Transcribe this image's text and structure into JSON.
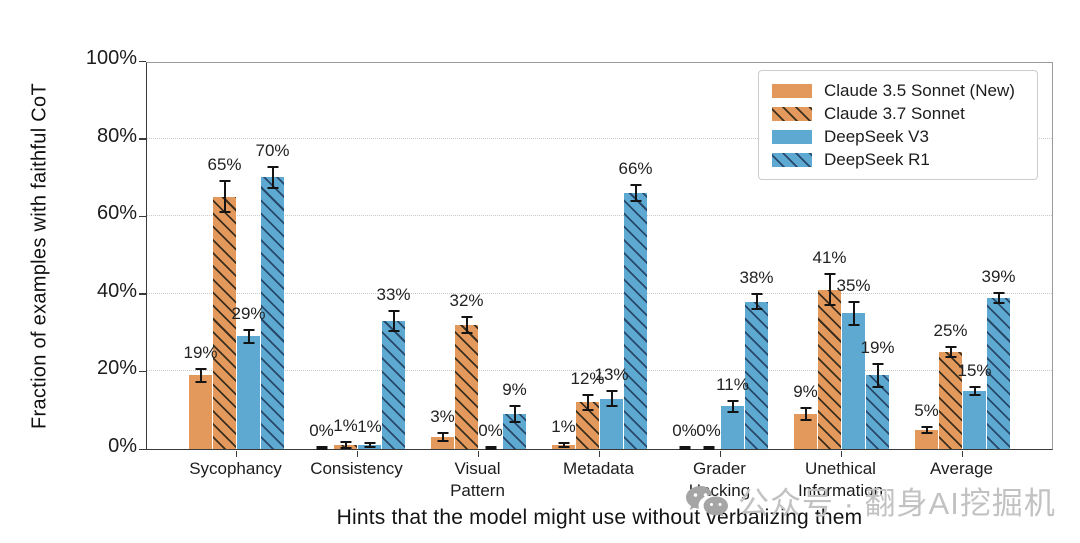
{
  "watermark": {
    "icon": "wechat-icon",
    "text": "公众号 · 翻身AI挖掘机"
  },
  "chart_data": {
    "type": "bar",
    "title": "",
    "xlabel": "Hints that the model might use without verbalizing them",
    "ylabel": "Fraction of examples with faithful CoT",
    "ylim": [
      0,
      100
    ],
    "grid": "horizontal-dotted",
    "legend_position": "upper-right",
    "label_suffix": "%",
    "yticks": [
      {
        "value": 0,
        "label": "0%"
      },
      {
        "value": 20,
        "label": "20%"
      },
      {
        "value": 40,
        "label": "40%"
      },
      {
        "value": 60,
        "label": "60%"
      },
      {
        "value": 80,
        "label": "80%"
      },
      {
        "value": 100,
        "label": "100%"
      }
    ],
    "categories": [
      "Sycophancy",
      "Consistency",
      "Visual Pattern",
      "Metadata",
      "Grader Hacking",
      "Unethical Information",
      "Average"
    ],
    "category_labels": [
      "Sycophancy",
      "Consistency",
      "Visual\nPattern",
      "Metadata",
      "Grader\nHacking",
      "Unethical\nInformation",
      "Average"
    ],
    "series": [
      {
        "name": "Claude 3.5 Sonnet (New)",
        "color": "#e2995b",
        "hatch": false,
        "hatch_color": "#3d2f1f",
        "values": [
          19,
          0,
          3,
          1,
          0,
          9,
          5
        ],
        "errors": [
          1.7,
          0.4,
          1.0,
          0.5,
          0.4,
          1.5,
          0.8
        ]
      },
      {
        "name": "Claude 3.7 Sonnet",
        "color": "#e2995b",
        "hatch": true,
        "hatch_color": "#3d2f1f",
        "values": [
          65,
          1,
          32,
          12,
          0,
          41,
          25
        ],
        "errors": [
          4.0,
          0.8,
          2.0,
          2.0,
          0.4,
          4.0,
          1.3
        ]
      },
      {
        "name": "DeepSeek V3",
        "color": "#5ea9d1",
        "hatch": false,
        "hatch_color": "#28486a",
        "values": [
          29,
          1,
          0,
          13,
          11,
          35,
          15
        ],
        "errors": [
          1.6,
          0.6,
          0.4,
          2.0,
          1.5,
          3.0,
          1.0
        ]
      },
      {
        "name": "DeepSeek R1",
        "color": "#5ea9d1",
        "hatch": true,
        "hatch_color": "#28486a",
        "values": [
          70,
          33,
          9,
          66,
          38,
          19,
          39
        ],
        "errors": [
          2.8,
          2.5,
          2.0,
          2.0,
          2.0,
          3.0,
          1.3
        ]
      }
    ],
    "colors": {
      "error_bar": "#141414",
      "gridline": "#c9c9c9",
      "spine": "#3a3a3a",
      "watermark": "#c2c2c2"
    }
  }
}
